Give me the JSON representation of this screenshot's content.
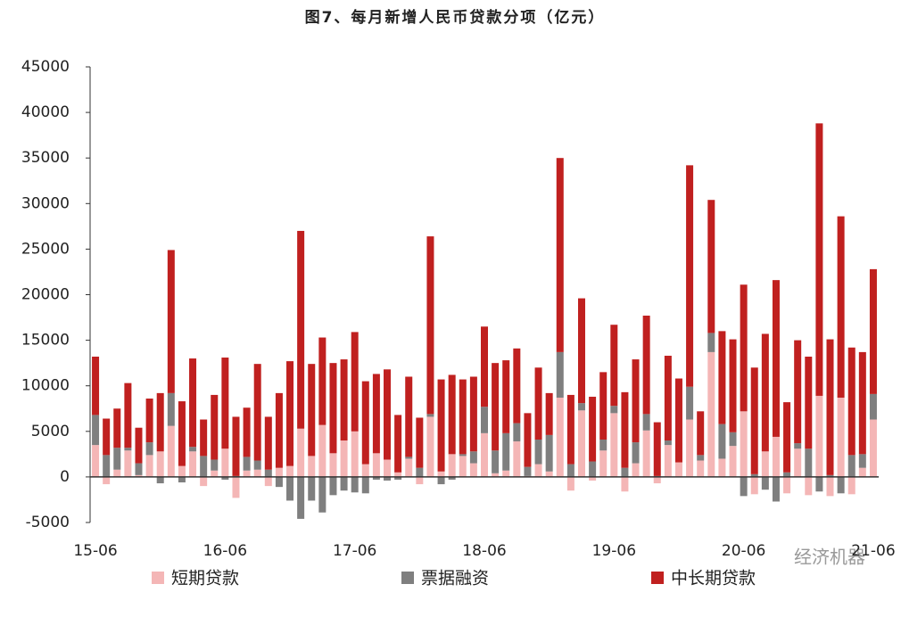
{
  "chart_data": {
    "type": "stacked_bar",
    "title": "图7、每月新增人民币贷款分项（亿元）",
    "categories": [
      "15-06",
      null,
      null,
      null,
      null,
      null,
      null,
      null,
      null,
      null,
      null,
      null,
      "16-06",
      null,
      null,
      null,
      null,
      null,
      null,
      null,
      null,
      null,
      null,
      null,
      "17-06",
      null,
      null,
      null,
      null,
      null,
      null,
      null,
      null,
      null,
      null,
      null,
      "18-06",
      null,
      null,
      null,
      null,
      null,
      null,
      null,
      null,
      null,
      null,
      null,
      "19-06",
      null,
      null,
      null,
      null,
      null,
      null,
      null,
      null,
      null,
      null,
      null,
      "20-06",
      null,
      null,
      null,
      null,
      null,
      null,
      null,
      null,
      null,
      null,
      null,
      "21-06"
    ],
    "series": [
      {
        "name": "短期贷款",
        "color": "#f4b6b6",
        "values": [
          3500,
          -800,
          800,
          2900,
          200,
          2400,
          2800,
          5600,
          1200,
          2800,
          -1000,
          700,
          3100,
          -2300,
          700,
          800,
          -1000,
          1000,
          1200,
          5300,
          2300,
          5700,
          2600,
          4000,
          5000,
          1400,
          2600,
          1900,
          500,
          2000,
          -800,
          6600,
          600,
          2500,
          2300,
          1500,
          4800,
          400,
          700,
          3900,
          100,
          1400,
          600,
          8700,
          -1500,
          7300,
          -400,
          2900,
          7000,
          -1600,
          1500,
          5100,
          -700,
          3500,
          1600,
          6300,
          1800,
          13700,
          2000,
          3400,
          7200,
          -1900,
          2800,
          4400,
          -1800,
          3100,
          -2000,
          8900,
          -2100,
          8700,
          -1900,
          1000,
          6300
        ]
      },
      {
        "name": "票据融资",
        "color": "#7f7f7f",
        "values": [
          3300,
          2400,
          2400,
          300,
          1300,
          1400,
          -700,
          3600,
          -600,
          500,
          2300,
          1200,
          -300,
          100,
          1500,
          1000,
          800,
          -1100,
          -2600,
          -4600,
          -2600,
          -3900,
          -2000,
          -1500,
          -1700,
          -1800,
          -300,
          -400,
          -300,
          200,
          1000,
          300,
          -800,
          -300,
          200,
          1300,
          2900,
          2500,
          4100,
          2000,
          1000,
          2700,
          4000,
          5000,
          1400,
          800,
          1700,
          1200,
          800,
          1000,
          2300,
          1800,
          100,
          500,
          0,
          3600,
          600,
          2100,
          3800,
          1500,
          -2100,
          300,
          -1400,
          -2700,
          500,
          600,
          3100,
          -1600,
          200,
          -1800,
          2400,
          1500,
          2800
        ]
      },
      {
        "name": "中长期贷款",
        "color": "#c0201f",
        "values": [
          6400,
          4000,
          4300,
          7100,
          3900,
          4800,
          6400,
          15700,
          7100,
          9700,
          4000,
          7100,
          10000,
          6500,
          5400,
          10600,
          5800,
          8200,
          11500,
          21700,
          10100,
          9600,
          9900,
          8900,
          10900,
          9100,
          8700,
          9900,
          6300,
          8800,
          5500,
          19500,
          10100,
          8700,
          8200,
          8200,
          8800,
          9600,
          8000,
          8200,
          5900,
          7900,
          4600,
          21300,
          7600,
          11500,
          7100,
          7400,
          8900,
          8300,
          9100,
          10800,
          5900,
          9300,
          9200,
          24300,
          4800,
          14600,
          10200,
          10200,
          13900,
          11700,
          12900,
          17200,
          7700,
          11300,
          10100,
          29900,
          14900,
          19900,
          11800,
          11200,
          13700
        ]
      }
    ],
    "ylim": [
      -5000,
      45000
    ],
    "yticks": [
      -5000,
      0,
      5000,
      10000,
      15000,
      20000,
      25000,
      30000,
      35000,
      40000,
      45000
    ],
    "legend": "bottom",
    "watermark": "经济机器"
  }
}
